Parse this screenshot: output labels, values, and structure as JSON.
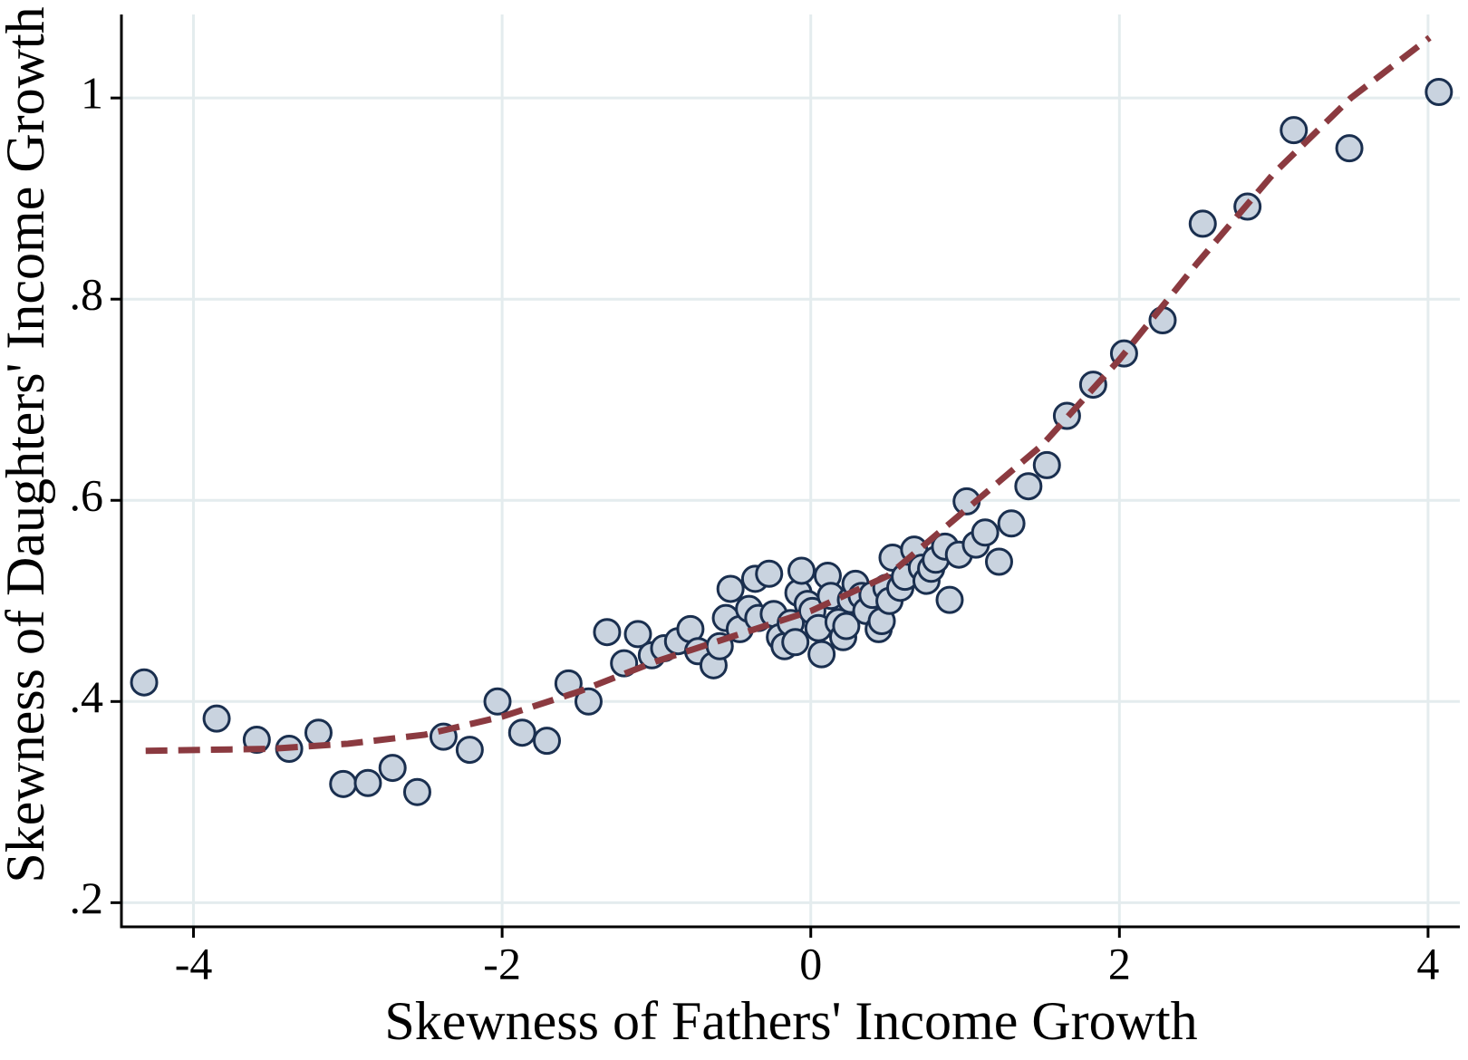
{
  "chart_data": {
    "type": "scatter",
    "xlabel": "Skewness of Fathers' Income Growth",
    "ylabel": "Skewness of Daughters' Income Growth",
    "xlim": [
      -4.467,
      4.206
    ],
    "ylim": [
      0.176,
      1.083
    ],
    "xticks": [
      -4,
      -2,
      0,
      2,
      4
    ],
    "yticks": [
      {
        "value": 0.2,
        "label": ".2"
      },
      {
        "value": 0.4,
        "label": ".4"
      },
      {
        "value": 0.6,
        "label": ".6"
      },
      {
        "value": 0.8,
        "label": ".8"
      },
      1
    ],
    "grid": true,
    "points": {
      "color": "#c9d3df",
      "edgecolor": "#1a2f4f",
      "x": [
        -4.32,
        -3.85,
        -3.59,
        -3.38,
        -3.19,
        -3.03,
        -2.87,
        -2.71,
        -2.55,
        -2.38,
        -2.21,
        -2.03,
        -1.87,
        -1.71,
        -1.57,
        -1.44,
        -1.32,
        -1.21,
        -1.12,
        -1.03,
        -0.95,
        -0.86,
        -0.78,
        -0.73,
        -0.63,
        -0.59,
        -0.55,
        -0.52,
        -0.46,
        -0.4,
        -0.36,
        -0.34,
        -0.27,
        -0.24,
        -0.2,
        -0.17,
        -0.13,
        -0.1,
        -0.08,
        -0.06,
        -0.02,
        0.01,
        0.05,
        0.07,
        0.11,
        0.13,
        0.18,
        0.21,
        0.23,
        0.26,
        0.29,
        0.33,
        0.36,
        0.4,
        0.44,
        0.46,
        0.49,
        0.51,
        0.53,
        0.58,
        0.61,
        0.67,
        0.72,
        0.75,
        0.78,
        0.81,
        0.87,
        0.9,
        0.96,
        1.01,
        1.07,
        1.13,
        1.22,
        1.3,
        1.41,
        1.53,
        1.66,
        1.83,
        2.03,
        2.28,
        2.54,
        2.83,
        3.13,
        3.49,
        4.07
      ],
      "y": [
        0.419,
        0.383,
        0.362,
        0.353,
        0.369,
        0.318,
        0.319,
        0.334,
        0.31,
        0.365,
        0.352,
        0.4,
        0.369,
        0.361,
        0.418,
        0.4,
        0.469,
        0.438,
        0.467,
        0.446,
        0.453,
        0.46,
        0.472,
        0.45,
        0.436,
        0.455,
        0.483,
        0.512,
        0.472,
        0.492,
        0.522,
        0.483,
        0.527,
        0.487,
        0.464,
        0.455,
        0.478,
        0.459,
        0.508,
        0.53,
        0.497,
        0.49,
        0.473,
        0.447,
        0.525,
        0.505,
        0.479,
        0.464,
        0.475,
        0.501,
        0.517,
        0.505,
        0.49,
        0.506,
        0.472,
        0.48,
        0.513,
        0.5,
        0.543,
        0.513,
        0.524,
        0.551,
        0.533,
        0.52,
        0.532,
        0.541,
        0.554,
        0.501,
        0.546,
        0.599,
        0.556,
        0.568,
        0.539,
        0.577,
        0.614,
        0.635,
        0.684,
        0.715,
        0.746,
        0.779,
        0.875,
        0.892,
        0.968,
        0.95,
        1.006
      ]
    },
    "fit": {
      "color": "#8b3a40",
      "style": "dashed",
      "x": [
        -4.31,
        -3.5,
        -3,
        -2.5,
        -2,
        -1.5,
        -1,
        -0.5,
        0,
        0.5,
        1,
        1.5,
        2,
        2.5,
        3,
        3.5,
        4.01
      ],
      "y": [
        0.351,
        0.353,
        0.358,
        0.367,
        0.385,
        0.41,
        0.44,
        0.465,
        0.49,
        0.525,
        0.59,
        0.655,
        0.74,
        0.835,
        0.925,
        1.0,
        1.06
      ]
    }
  }
}
